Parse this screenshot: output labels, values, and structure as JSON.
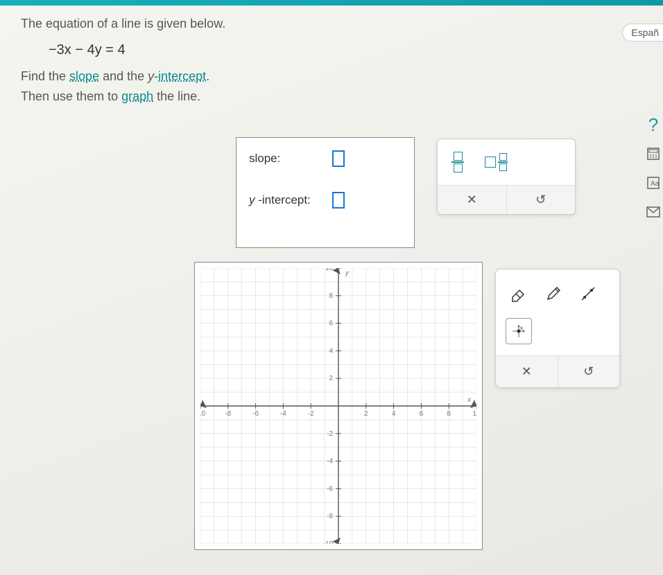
{
  "question": {
    "line1": "The equation of a line is given below.",
    "equation": "−3x − 4y = 4",
    "line2_pre": "Find the ",
    "link1": "slope",
    "line2_mid": " and the ",
    "y_italic": "y",
    "dash": "-",
    "link2": "intercept",
    "line2_post": ".",
    "line3_pre": "Then use them to ",
    "link3": "graph",
    "line3_post": " the line."
  },
  "answer": {
    "slope_label": "slope:",
    "intercept_label_pre": "y",
    "intercept_label_post": " -intercept:"
  },
  "helper": {
    "clear": "✕",
    "reset": "↺"
  },
  "tools": {
    "clear": "✕",
    "reset": "↺"
  },
  "espanol": "Españ",
  "graph": {
    "xlim": [
      -10,
      10
    ],
    "ylim": [
      -10,
      10
    ],
    "tick_step": 2,
    "grid_color": "#d8d8d8",
    "axis_color": "#555555",
    "label_color": "#777777",
    "label_fontsize": 10,
    "background": "#ffffff",
    "x_axis_label": "x",
    "y_axis_label": "y"
  },
  "colors": {
    "accent": "#1a8a9a",
    "input_border": "#1976d2"
  }
}
